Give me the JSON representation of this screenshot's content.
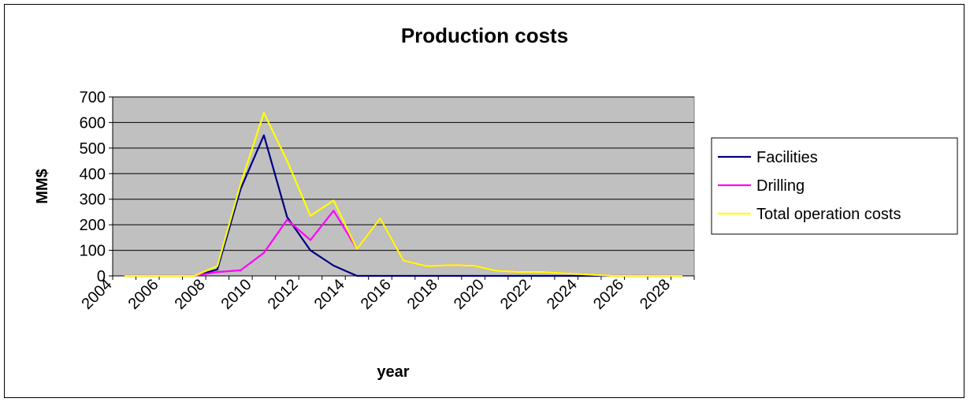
{
  "chart_data": {
    "type": "line",
    "title": "Production costs",
    "xlabel": "year",
    "ylabel": "MM$",
    "ylim": [
      0,
      700
    ],
    "yticks": [
      0,
      100,
      200,
      300,
      400,
      500,
      600,
      700
    ],
    "x": [
      2005,
      2006,
      2007,
      2008,
      2009,
      2010,
      2011,
      2012,
      2013,
      2014,
      2015,
      2016,
      2017,
      2018,
      2019,
      2020,
      2021,
      2022,
      2023,
      2024,
      2025,
      2026,
      2027,
      2028,
      2029
    ],
    "xlim": [
      2004.5,
      2029.5
    ],
    "xtick_labels": [
      "2004",
      "2006",
      "2008",
      "2010",
      "2012",
      "2014",
      "2016",
      "2018",
      "2020",
      "2022",
      "2024",
      "2026",
      "2028"
    ],
    "grid": true,
    "plot_background": "#c0c0c0",
    "legend_position": "right",
    "series": [
      {
        "name": "Facilities",
        "color": "#000080",
        "values": [
          0,
          0,
          0,
          0,
          25,
          340,
          550,
          230,
          100,
          40,
          0,
          0,
          0,
          0,
          0,
          0,
          0,
          0,
          0,
          0,
          0,
          0,
          0,
          0,
          0
        ]
      },
      {
        "name": "Drilling",
        "color": "#ff00ff",
        "values": [
          0,
          0,
          0,
          0,
          15,
          22,
          90,
          220,
          140,
          255,
          105,
          225,
          60,
          38,
          42,
          40,
          20,
          15,
          15,
          10,
          5,
          0,
          0,
          0,
          0
        ]
      },
      {
        "name": "Total operation costs",
        "color": "#ffff00",
        "values": [
          0,
          0,
          0,
          0,
          38,
          360,
          638,
          450,
          235,
          295,
          105,
          225,
          60,
          38,
          42,
          40,
          20,
          15,
          15,
          10,
          5,
          0,
          0,
          0,
          0
        ]
      }
    ]
  }
}
